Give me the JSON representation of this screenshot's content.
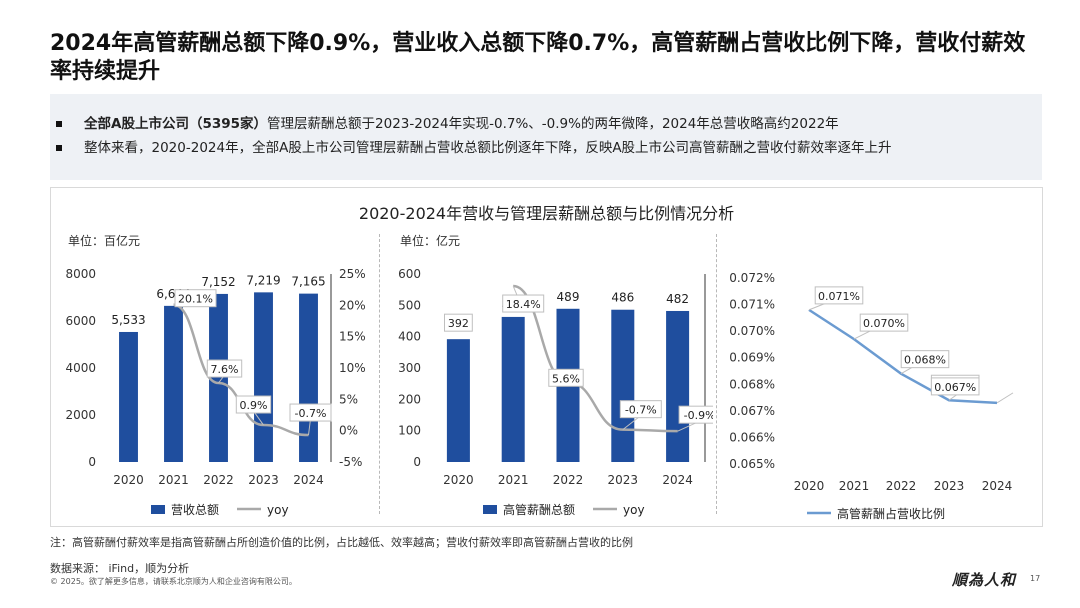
{
  "page": {
    "title": "2024年高管薪酬总额下降0.9%，营业收入总额下降0.7%，高管薪酬占营收比例下降，营收付薪效率持续提升"
  },
  "summary": {
    "bullet1_strong": "全部A股上市公司（5395家）",
    "bullet1_rest": "管理层薪酬总额于2023-2024年实现-0.7%、-0.9%的两年微降，2024年总营收略高约2022年",
    "bullet2": "整体来看，2020-2024年，全部A股上市公司管理层薪酬占营收总额比例逐年下降，反映A股上市公司高管薪酬之营收付薪效率逐年上升"
  },
  "chart_title": "2020-2024年营收与管理层薪酬总额与比例情况分析",
  "chart_data": [
    {
      "type": "bar",
      "unit": "单位：百亿元",
      "categories": [
        "2020",
        "2021",
        "2022",
        "2023",
        "2024"
      ],
      "series": [
        {
          "name": "营收总额",
          "axis": "left",
          "values": [
            5533,
            6644,
            7152,
            7219,
            7165
          ],
          "labels": [
            "5,533",
            "6,644",
            "7,152",
            "7,219",
            "7,165"
          ]
        },
        {
          "name": "yoy",
          "axis": "right",
          "type": "line",
          "values": [
            null,
            20.1,
            7.6,
            0.9,
            -0.7
          ],
          "labels": [
            "",
            "20.1%",
            "7.6%",
            "0.9%",
            "-0.7%"
          ]
        }
      ],
      "left_axis": {
        "ylim": [
          0,
          8000
        ],
        "ticks": [
          "0",
          "2000",
          "4000",
          "6000",
          "8000"
        ]
      },
      "right_axis": {
        "ylim": [
          -5,
          25
        ],
        "ticks": [
          "-5%",
          "0%",
          "5%",
          "10%",
          "15%",
          "20%",
          "25%"
        ]
      },
      "legend": "bottom",
      "grid": false
    },
    {
      "type": "bar",
      "unit": "单位：亿元",
      "categories": [
        "2020",
        "2021",
        "2022",
        "2023",
        "2024"
      ],
      "series": [
        {
          "name": "高管薪酬总额",
          "axis": "left",
          "values": [
            392,
            463,
            489,
            486,
            482
          ],
          "labels": [
            "392",
            "463",
            "489",
            "486",
            "482"
          ]
        },
        {
          "name": "yoy",
          "axis": "right",
          "type": "line",
          "values": [
            null,
            18.4,
            5.6,
            -0.7,
            -0.9
          ],
          "labels": [
            "",
            "18.4%",
            "5.6%",
            "-0.7%",
            "-0.9%"
          ]
        }
      ],
      "left_axis": {
        "ylim": [
          0,
          600
        ],
        "ticks": [
          "0",
          "100",
          "200",
          "300",
          "400",
          "500",
          "600"
        ]
      },
      "right_axis": {
        "ylim": [
          -5,
          20
        ],
        "ticks": [
          "-5%",
          "0%",
          "5%",
          "10%",
          "15%",
          "20%"
        ]
      },
      "legend": "bottom",
      "grid": false
    },
    {
      "type": "line",
      "categories": [
        "2020",
        "2021",
        "2022",
        "2023",
        "2024"
      ],
      "series": [
        {
          "name": "高管薪酬占营收比例",
          "values": [
            0.0708,
            0.0697,
            0.0684,
            0.0674,
            0.0673
          ],
          "labels": [
            "0.071%",
            "0.070%",
            "0.068%",
            "0.067%",
            "0.067%"
          ]
        }
      ],
      "ylim": [
        0.065,
        0.072
      ],
      "ticks": [
        "0.065%",
        "0.066%",
        "0.067%",
        "0.068%",
        "0.069%",
        "0.070%",
        "0.071%",
        "0.072%"
      ],
      "legend": "bottom",
      "grid": false
    }
  ],
  "colors": {
    "bar": "#1f4e9e",
    "yoy_line": "#a9a9a9",
    "ratio_line": "#6b9bd1"
  },
  "footer": {
    "note": "注：高管薪酬付薪效率是指高管薪酬占所创造价值的比例，占比越低、效率越高；营收付薪效率即高管薪酬占营收的比例",
    "source": "数据来源： iFind，顺为分析",
    "copyright": "© 2025。欲了解更多信息，请联系北京顺为人和企业咨询有限公司。",
    "logo": "順為人和",
    "page_number": "17"
  }
}
